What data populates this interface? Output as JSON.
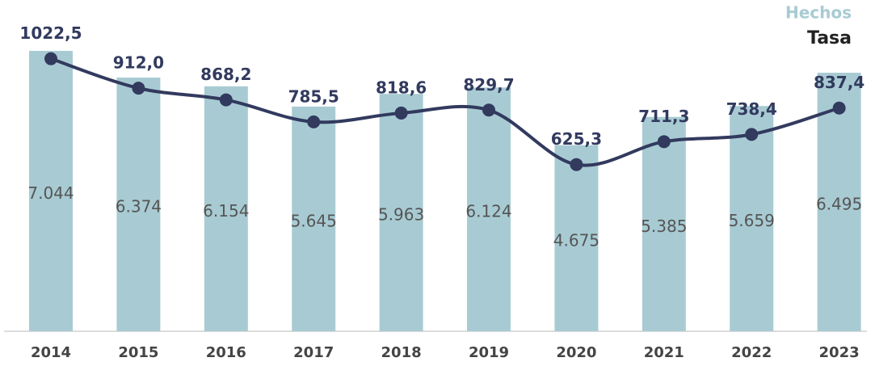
{
  "chart_data": {
    "type": "bar",
    "categories": [
      "2014",
      "2015",
      "2016",
      "2017",
      "2018",
      "2019",
      "2020",
      "2021",
      "2022",
      "2023"
    ],
    "series": [
      {
        "name": "Hechos",
        "color": "#a8cbd3",
        "values": [
          7044,
          6374,
          6154,
          5645,
          5963,
          6124,
          4675,
          5385,
          5659,
          6495
        ],
        "value_labels": [
          "7.044",
          "6.374",
          "6.154",
          "5.645",
          "5.963",
          "6.124",
          "4.675",
          "5.385",
          "5.659",
          "6.495"
        ]
      },
      {
        "name": "Tasa",
        "type": "line",
        "axis": "y2",
        "color": "#323a5e",
        "values": [
          1022.5,
          912.0,
          868.2,
          785.5,
          818.6,
          829.7,
          625.3,
          711.3,
          738.4,
          837.4
        ],
        "value_labels": [
          "1022,5",
          "912,0",
          "868,2",
          "785,5",
          "818,6",
          "829,7",
          "625,3",
          "711,3",
          "738,4",
          "837,4"
        ]
      }
    ],
    "ylim": [
      0,
      7500
    ],
    "y2lim": [
      0,
      1120
    ],
    "legend": "top-right"
  }
}
